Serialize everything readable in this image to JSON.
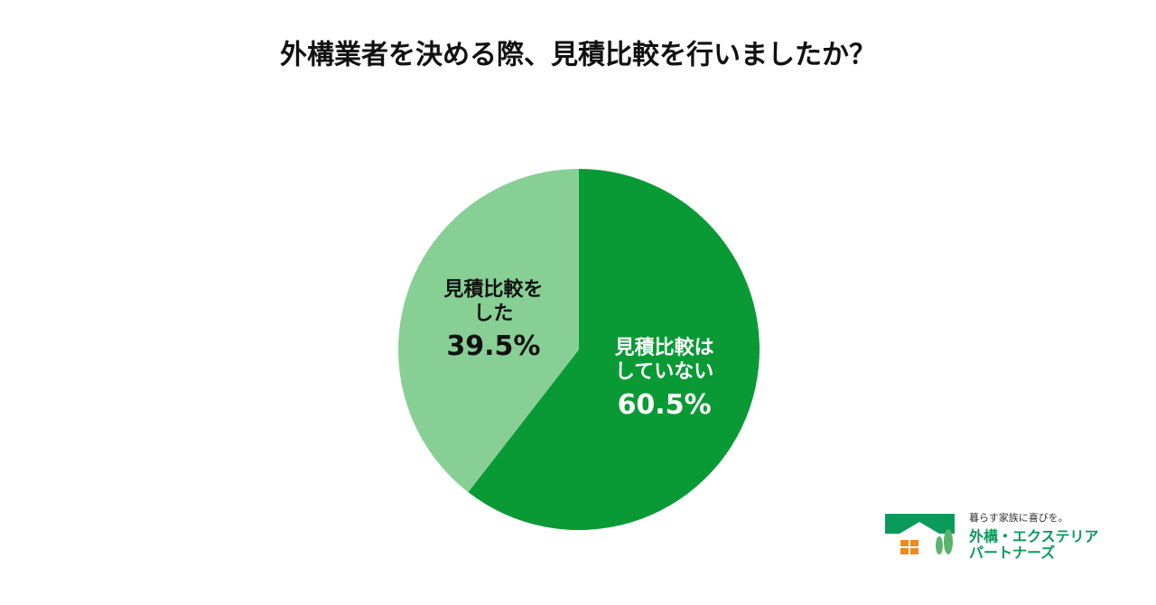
{
  "chart_data": {
    "type": "pie",
    "title": "外構業者を決める際、見積比較を行いましたか？",
    "categories": [
      "見積比較は\nしていない",
      "見積比較を\nした"
    ],
    "values": [
      60.5,
      39.5
    ],
    "value_labels": [
      "60.5%",
      "39.5%"
    ],
    "colors": [
      "#0a9a35",
      "#88cf96"
    ]
  },
  "logo": {
    "tagline": "暮らす家族に喜びを。",
    "name_line1": "外構・エクステリア",
    "name_line2": "パートナーズ"
  }
}
